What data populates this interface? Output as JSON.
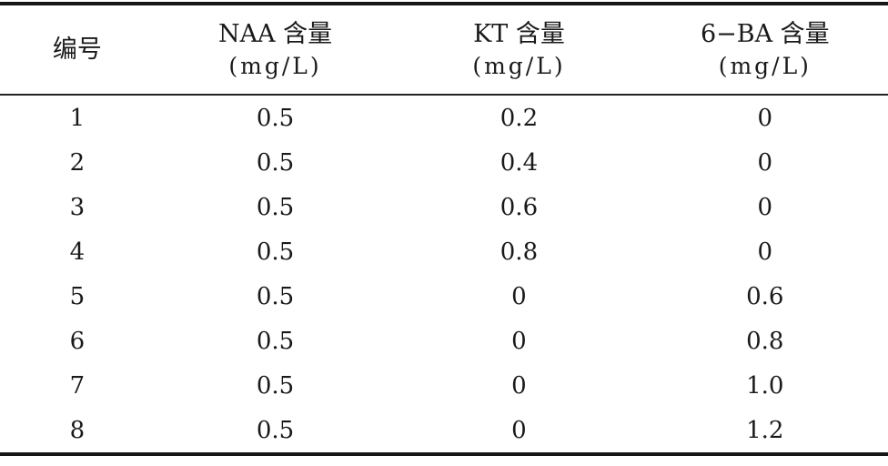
{
  "document": {
    "type": "scanned-table",
    "language": "zh-CN"
  },
  "colors": {
    "background": "#ffffff",
    "text": "#1a1a1a",
    "rule": "#161616"
  },
  "table": {
    "column_keys": [
      "id",
      "naa",
      "kt",
      "ba"
    ],
    "columns": [
      {
        "line1": "编号",
        "line2": ""
      },
      {
        "line1": "NAA 含量",
        "line2": "(mg/L)"
      },
      {
        "line1": "KT 含量",
        "line2": "(mg/L)"
      },
      {
        "line1": "6−BA 含量",
        "line2": "(mg/L)"
      }
    ],
    "rows": [
      [
        "1",
        "0.5",
        "0.2",
        "0"
      ],
      [
        "2",
        "0.5",
        "0.4",
        "0"
      ],
      [
        "3",
        "0.5",
        "0.6",
        "0"
      ],
      [
        "4",
        "0.5",
        "0.8",
        "0"
      ],
      [
        "5",
        "0.5",
        "0",
        "0.6"
      ],
      [
        "6",
        "0.5",
        "0",
        "0.8"
      ],
      [
        "7",
        "0.5",
        "0",
        "1.0"
      ],
      [
        "8",
        "0.5",
        "0",
        "1.2"
      ]
    ]
  }
}
